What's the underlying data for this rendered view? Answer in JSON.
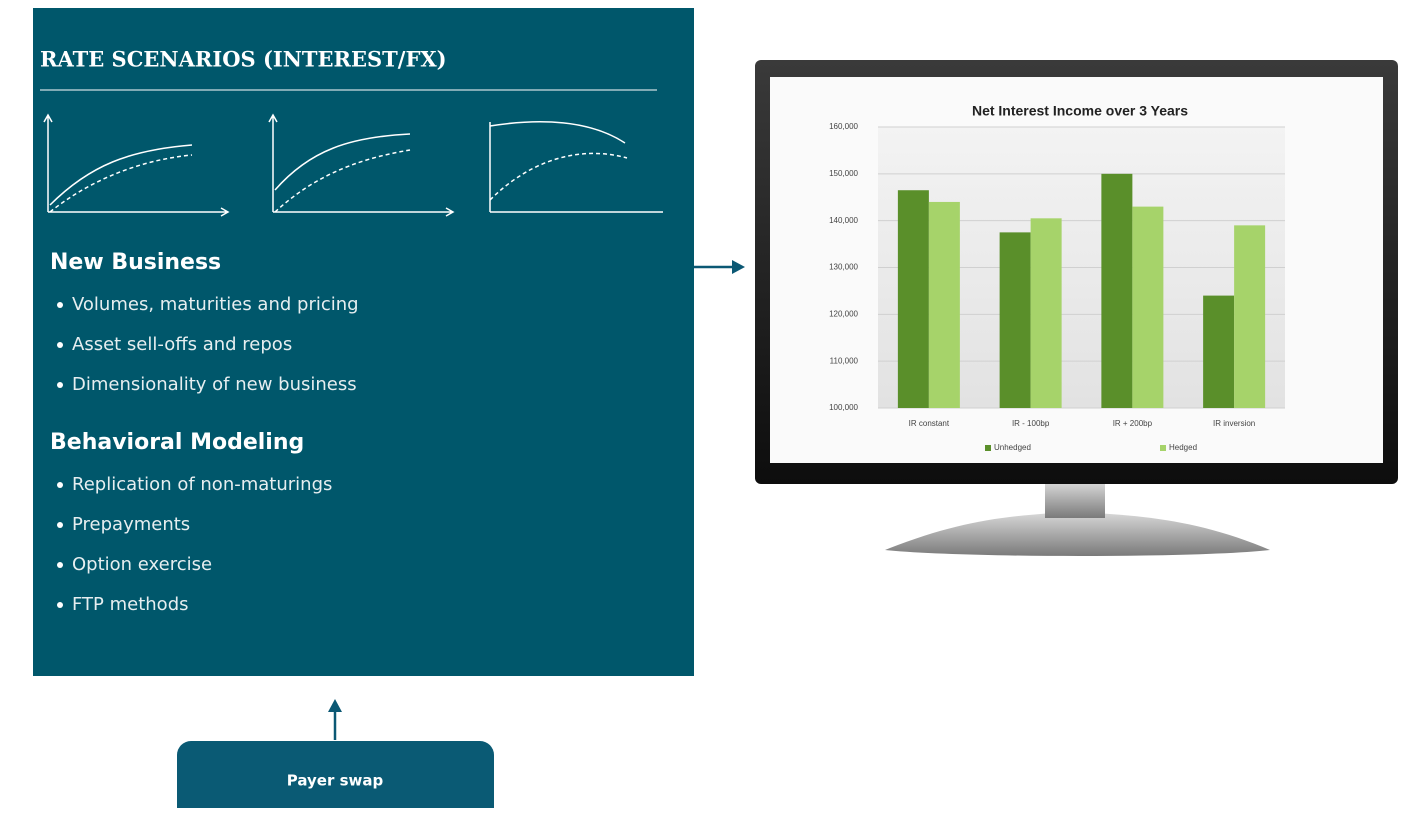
{
  "panel": {
    "title": "RATE SCENARIOS (INTEREST/FX)",
    "sections": [
      {
        "heading": "New Business",
        "items": [
          "Volumes, maturities and pricing",
          "Asset sell-offs and repos",
          "Dimensionality of new business"
        ]
      },
      {
        "heading": "Behavioral Modeling",
        "items": [
          "Replication of non-maturings",
          "Prepayments",
          "Option exercise",
          "FTP methods"
        ]
      }
    ]
  },
  "button": {
    "label": "Payer swap"
  },
  "chart_data": {
    "type": "bar",
    "title": "Net Interest Income over 3 Years",
    "categories": [
      "IR constant",
      "IR - 100bp",
      "IR + 200bp",
      "IR inversion"
    ],
    "series": [
      {
        "name": "Unhedged",
        "color": "#5a8f2a",
        "values": [
          146500,
          137500,
          150000,
          124000
        ]
      },
      {
        "name": "Hedged",
        "color": "#a6d36a",
        "values": [
          144000,
          140500,
          143000,
          139000
        ]
      }
    ],
    "ylim": [
      100000,
      160000
    ],
    "yticks": [
      {
        "value": 100000,
        "label": "100,000"
      },
      {
        "value": 110000,
        "label": "110,000"
      },
      {
        "value": 120000,
        "label": "120,000"
      },
      {
        "value": 130000,
        "label": "130,000"
      },
      {
        "value": 140000,
        "label": "140,000"
      },
      {
        "value": 150000,
        "label": "150,000"
      },
      {
        "value": 160000,
        "label": "160,000"
      }
    ],
    "grid": true,
    "legend": "bottom"
  }
}
